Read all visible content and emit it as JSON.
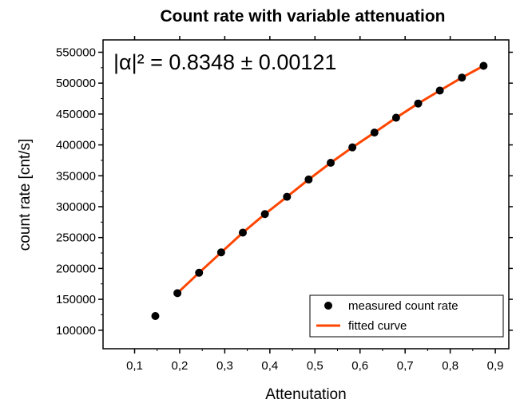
{
  "chart_data": {
    "type": "scatter",
    "title": "Count rate with variable attenuation",
    "xlabel": "Attenutation",
    "ylabel": "count rate [cnt/s]",
    "xlim": [
      0.03,
      0.93
    ],
    "ylim": [
      70000,
      570000
    ],
    "x_ticks": [
      0.1,
      0.2,
      0.3,
      0.4,
      0.5,
      0.6,
      0.7,
      0.8,
      0.9
    ],
    "x_tick_labels": [
      "0,1",
      "0,2",
      "0,3",
      "0,4",
      "0,5",
      "0,6",
      "0,7",
      "0,8",
      "0,9"
    ],
    "y_ticks": [
      100000,
      150000,
      200000,
      250000,
      300000,
      350000,
      400000,
      450000,
      500000,
      550000
    ],
    "y_tick_labels": [
      "100000",
      "150000",
      "200000",
      "250000",
      "300000",
      "350000",
      "400000",
      "450000",
      "500000",
      "550000"
    ],
    "annotation": "|α|² = 0.8348 ± 0.00121",
    "legend_position": "bottom-right",
    "series": [
      {
        "name": "measured count rate",
        "kind": "points",
        "color": "#000000",
        "x": [
          0.146,
          0.195,
          0.243,
          0.292,
          0.34,
          0.389,
          0.438,
          0.486,
          0.535,
          0.583,
          0.632,
          0.68,
          0.729,
          0.777,
          0.826,
          0.874
        ],
        "y": [
          123000,
          160000,
          193000,
          226000,
          258000,
          288000,
          316000,
          344000,
          371000,
          396000,
          420000,
          444000,
          467000,
          488000,
          509000,
          528000
        ]
      },
      {
        "name": "fitted curve",
        "kind": "line",
        "color": "#ff4500",
        "x": [
          0.195,
          0.243,
          0.292,
          0.34,
          0.389,
          0.438,
          0.486,
          0.535,
          0.583,
          0.632,
          0.68,
          0.729,
          0.777,
          0.826,
          0.874
        ],
        "y": [
          160000,
          193000,
          226000,
          258000,
          288000,
          316000,
          344000,
          371000,
          396000,
          420000,
          444000,
          467000,
          488000,
          509000,
          528000
        ]
      }
    ]
  }
}
